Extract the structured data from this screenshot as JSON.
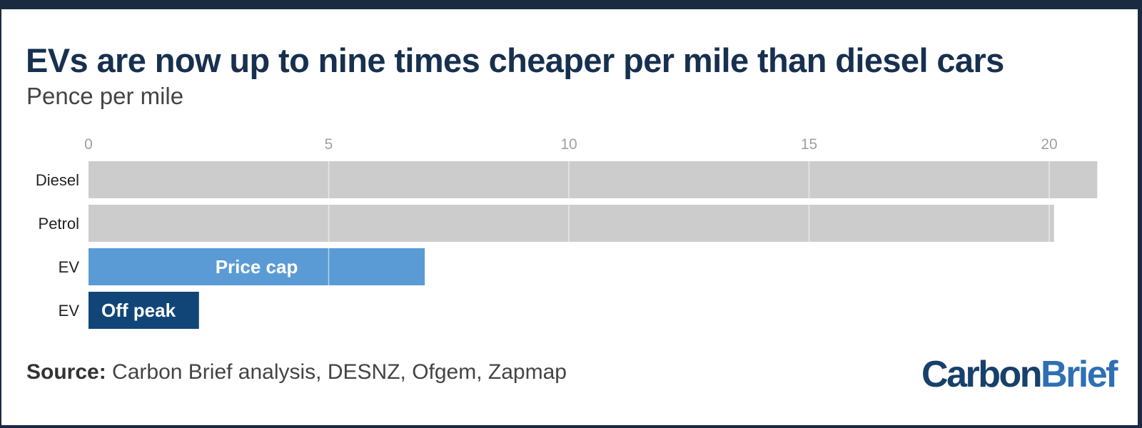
{
  "title": "EVs are now up to nine times cheaper per mile than diesel cars",
  "subtitle": "Pence per mile",
  "source_label": "Source:",
  "source_text": "Carbon Brief analysis, DESNZ, Ofgem, Zapmap",
  "logo": {
    "part1": "Carbon",
    "part2": "Brief"
  },
  "colors": {
    "grey_bar": "#cccccc",
    "price_cap": "#5b9bd5",
    "off_peak": "#114577",
    "axis_text": "#a0a0a0",
    "title": "#17304f"
  },
  "chart_data": {
    "type": "bar",
    "orientation": "horizontal",
    "categories": [
      "Diesel",
      "Petrol",
      "EV",
      "EV"
    ],
    "values": [
      21,
      20.1,
      7,
      2.3
    ],
    "bar_labels": [
      "",
      "",
      "Price cap",
      "Off peak"
    ],
    "bar_colors": [
      "#cccccc",
      "#cccccc",
      "#5b9bd5",
      "#114577"
    ],
    "xticks": [
      0,
      5,
      10,
      15,
      20
    ],
    "xlim": [
      0,
      21
    ],
    "grid": true,
    "xlabel": "",
    "ylabel": ""
  }
}
